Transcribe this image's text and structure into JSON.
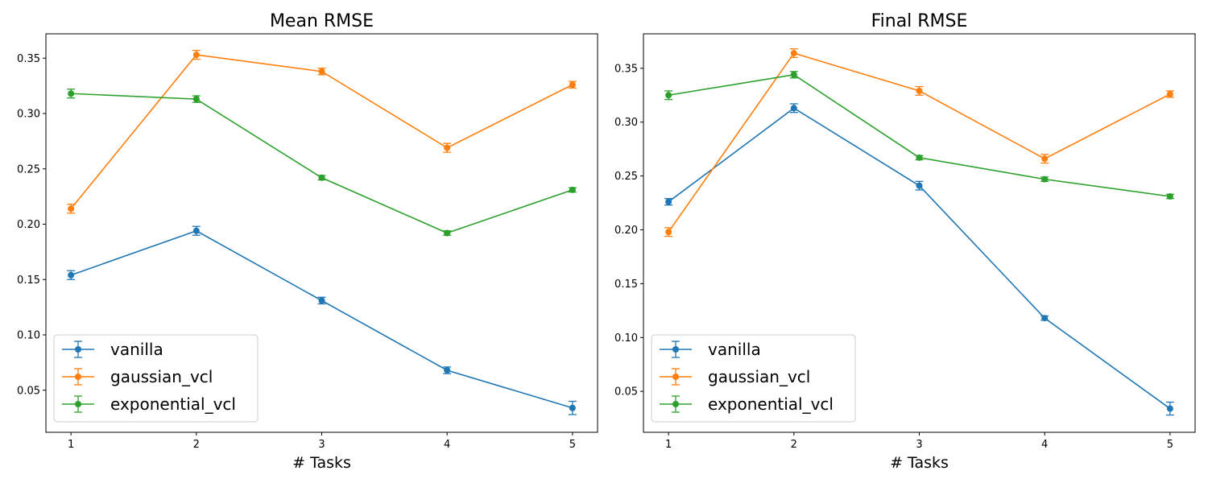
{
  "chart_data": [
    {
      "type": "line",
      "title": "Mean RMSE",
      "xlabel": "# Tasks",
      "ylabel": "",
      "x": [
        1,
        2,
        3,
        4,
        5
      ],
      "xlim": [
        0.8,
        5.2
      ],
      "ylim": [
        0.012,
        0.372
      ],
      "xticks": [
        1,
        2,
        3,
        4,
        5
      ],
      "xtick_labels": [
        "1",
        "2",
        "3",
        "4",
        "5"
      ],
      "yticks": [
        0.05,
        0.1,
        0.15,
        0.2,
        0.25,
        0.3,
        0.35
      ],
      "ytick_labels": [
        "0.05",
        "0.10",
        "0.15",
        "0.20",
        "0.25",
        "0.30",
        "0.35"
      ],
      "grid": false,
      "legend_position": "lower-left",
      "series": [
        {
          "name": "vanilla",
          "color": "#1f77b4",
          "values": [
            0.154,
            0.194,
            0.131,
            0.068,
            0.034
          ],
          "errors": [
            0.004,
            0.004,
            0.003,
            0.003,
            0.006
          ]
        },
        {
          "name": "gaussian_vcl",
          "color": "#ff7f0e",
          "values": [
            0.214,
            0.353,
            0.338,
            0.269,
            0.326
          ],
          "errors": [
            0.004,
            0.004,
            0.003,
            0.004,
            0.003
          ]
        },
        {
          "name": "exponential_vcl",
          "color": "#2ca02c",
          "values": [
            0.318,
            0.313,
            0.242,
            0.192,
            0.231
          ],
          "errors": [
            0.004,
            0.003,
            0.002,
            0.002,
            0.002
          ]
        }
      ]
    },
    {
      "type": "line",
      "title": "Final RMSE",
      "xlabel": "# Tasks",
      "ylabel": "",
      "x": [
        1,
        2,
        3,
        4,
        5
      ],
      "xlim": [
        0.8,
        5.2
      ],
      "ylim": [
        0.012,
        0.382
      ],
      "xticks": [
        1,
        2,
        3,
        4,
        5
      ],
      "xtick_labels": [
        "1",
        "2",
        "3",
        "4",
        "5"
      ],
      "yticks": [
        0.05,
        0.1,
        0.15,
        0.2,
        0.25,
        0.3,
        0.35
      ],
      "ytick_labels": [
        "0.05",
        "0.10",
        "0.15",
        "0.20",
        "0.25",
        "0.30",
        "0.35"
      ],
      "grid": false,
      "legend_position": "lower-left",
      "series": [
        {
          "name": "vanilla",
          "color": "#1f77b4",
          "values": [
            0.226,
            0.313,
            0.241,
            0.118,
            0.034
          ],
          "errors": [
            0.003,
            0.004,
            0.004,
            0.002,
            0.006
          ]
        },
        {
          "name": "gaussian_vcl",
          "color": "#ff7f0e",
          "values": [
            0.198,
            0.364,
            0.329,
            0.266,
            0.326
          ],
          "errors": [
            0.004,
            0.004,
            0.004,
            0.004,
            0.003
          ]
        },
        {
          "name": "exponential_vcl",
          "color": "#2ca02c",
          "values": [
            0.325,
            0.344,
            0.267,
            0.247,
            0.231
          ],
          "errors": [
            0.004,
            0.003,
            0.002,
            0.002,
            0.002
          ]
        }
      ]
    }
  ]
}
